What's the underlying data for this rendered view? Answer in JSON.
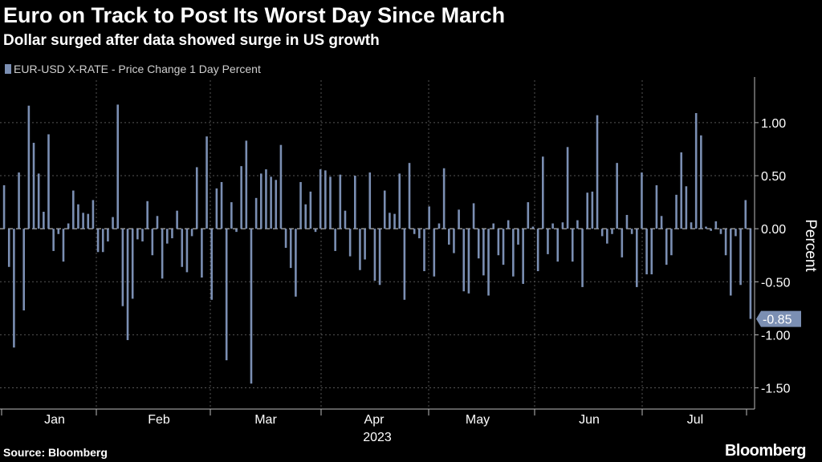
{
  "header": {
    "title": "Euro on Track to Post Its Worst Day Since March",
    "subtitle": "Dollar surged after data showed surge in US growth"
  },
  "footer": {
    "source": "Source: Bloomberg",
    "logo": "Bloomberg"
  },
  "colors": {
    "bar": "#7b8fb3",
    "grid": "#555555",
    "axis": "#bbbbbb",
    "text": "#ffffff",
    "background": "#000000"
  },
  "chart_data": {
    "type": "bar",
    "title": "Euro on Track to Post Its Worst Day Since March",
    "subtitle": "Dollar surged after data showed surge in US growth",
    "legend": [
      "EUR-USD X-RATE - Price Change 1 Day Percent"
    ],
    "legend_position": "top-left",
    "ylabel": "Percent",
    "xlabel": "2023",
    "ylim": [
      -1.7,
      1.4
    ],
    "yticks": [
      1.0,
      0.5,
      0.0,
      -0.5,
      -1.0,
      -1.5
    ],
    "ytick_labels": [
      "1.00",
      "0.50",
      "0.00",
      "-0.50",
      "-1.00",
      "-1.50"
    ],
    "months": [
      "Jan",
      "Feb",
      "Mar",
      "Apr",
      "May",
      "Jun",
      "Jul"
    ],
    "last_value_label": "-0.85",
    "series": [
      {
        "name": "EUR-USD X-RATE - Price Change 1 Day Percent",
        "values": [
          0.41,
          -0.36,
          -1.12,
          0.53,
          -0.77,
          1.16,
          0.81,
          0.52,
          0.16,
          0.89,
          -0.21,
          -0.05,
          -0.31,
          0.05,
          0.36,
          0.23,
          0.15,
          0.14,
          0.27,
          -0.22,
          -0.22,
          -0.12,
          0.11,
          1.17,
          -0.73,
          -1.05,
          -0.66,
          -0.1,
          -0.12,
          0.26,
          -0.25,
          0.12,
          -0.47,
          -0.14,
          -0.09,
          0.17,
          -0.36,
          -0.41,
          -0.07,
          0.58,
          -0.46,
          0.87,
          -0.67,
          0.38,
          0.44,
          -1.24,
          0.25,
          -0.03,
          0.59,
          0.83,
          -1.46,
          0.29,
          0.52,
          0.56,
          0.49,
          0.46,
          0.79,
          -0.18,
          -0.37,
          -0.64,
          0.44,
          0.23,
          0.35,
          -0.03,
          0.56,
          0.55,
          0.49,
          -0.21,
          0.51,
          0.17,
          -0.26,
          0.5,
          -0.39,
          -0.29,
          0.53,
          -0.49,
          -0.53,
          0.36,
          0.15,
          0.14,
          0.52,
          -0.67,
          0.62,
          -0.05,
          -0.09,
          -0.4,
          0.21,
          -0.45,
          0.05,
          0.57,
          -0.15,
          -0.23,
          0.18,
          -0.59,
          -0.61,
          0.24,
          -0.28,
          -0.44,
          -0.63,
          0.05,
          -0.25,
          -0.34,
          0.08,
          -0.45,
          -0.15,
          -0.52,
          0.25,
          0.02,
          -0.4,
          0.68,
          -0.24,
          0.05,
          -0.31,
          0.06,
          0.77,
          -0.31,
          0.08,
          -0.55,
          0.34,
          0.35,
          1.07,
          -0.07,
          -0.14,
          -0.05,
          0.62,
          -0.27,
          0.13,
          -0.05,
          -0.55,
          0.53,
          -0.43,
          -0.43,
          0.41,
          0.12,
          -0.34,
          -0.25,
          0.32,
          0.72,
          0.4,
          0.06,
          1.09,
          0.88,
          0.02,
          -0.02,
          0.07,
          -0.05,
          -0.25,
          -0.63,
          -0.07,
          -0.53,
          0.27,
          -0.85
        ]
      }
    ]
  }
}
